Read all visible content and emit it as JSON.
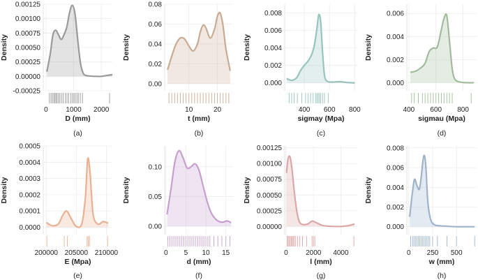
{
  "chart_data": [
    {
      "id": "a",
      "type": "area",
      "color": "#9a9a9a",
      "caption": "(a)",
      "xlabel": "D (mm)",
      "ylabel": "Density",
      "xlim": [
        -100,
        2400
      ],
      "ylim": [
        -0.00025,
        0.00125
      ],
      "xticks": [
        0,
        1000,
        2000
      ],
      "xticklabels": [
        "0",
        "1000",
        "2000"
      ],
      "yticks": [
        -0.00025,
        0,
        0.00025,
        0.0005,
        0.00075,
        0.001,
        0.00125
      ],
      "yticklabels": [
        "-0.00025",
        "0.00000",
        "0.00025",
        "0.00050",
        "0.00075",
        "0.00100",
        "0.00125"
      ],
      "x": [
        30,
        150,
        250,
        350,
        450,
        550,
        650,
        750,
        850,
        950,
        1050,
        1150,
        1250,
        1350,
        1450,
        1600,
        1800,
        2000,
        2200,
        2400
      ],
      "y": [
        8e-05,
        0.00038,
        0.00072,
        0.0008,
        0.00072,
        0.00064,
        0.00072,
        0.00085,
        0.0011,
        0.00123,
        0.00108,
        0.00062,
        0.00022,
        5e-05,
        1.5e-05,
        5e-06,
        0.0,
        0.0,
        1.5e-05,
        3e-05
      ],
      "rug": [
        120,
        180,
        230,
        280,
        320,
        360,
        400,
        450,
        500,
        560,
        620,
        700,
        760,
        820,
        900,
        960,
        1010,
        1060,
        1120,
        1170,
        1240,
        1320,
        2300
      ]
    },
    {
      "id": "b",
      "type": "area",
      "color": "#c8ab94",
      "caption": "(b)",
      "xlabel": "t (mm)",
      "ylabel": "Density",
      "xlim": [
        1.5,
        25.5
      ],
      "ylim": [
        -0.007,
        0.08
      ],
      "xticks": [
        10,
        20
      ],
      "xticklabels": [
        "10",
        "20"
      ],
      "yticks": [
        0,
        0.02,
        0.04,
        0.06,
        0.08
      ],
      "yticklabels": [
        "0.00",
        "0.02",
        "0.04",
        "0.06",
        "0.08"
      ],
      "x": [
        2.5,
        4,
        5.5,
        7,
        8.5,
        10,
        11.5,
        13,
        14,
        15,
        16,
        17.5,
        19,
        20,
        21,
        22,
        23,
        24.5
      ],
      "y": [
        0.014,
        0.028,
        0.04,
        0.046,
        0.045,
        0.038,
        0.033,
        0.04,
        0.052,
        0.059,
        0.056,
        0.046,
        0.055,
        0.068,
        0.071,
        0.058,
        0.035,
        0.013
      ],
      "rug": [
        3,
        4,
        5,
        6,
        7,
        8,
        9,
        10,
        11,
        12,
        13,
        14,
        15,
        16,
        17,
        18,
        19,
        20,
        21,
        22,
        23,
        24
      ]
    },
    {
      "id": "c",
      "type": "area",
      "color": "#98c4bc",
      "caption": "(c)",
      "xlabel": "sigmay (Mpa)",
      "ylabel": "Density",
      "xlim": [
        245,
        820
      ],
      "ylim": [
        -0.0009,
        0.009
      ],
      "xticks": [
        400,
        600,
        800
      ],
      "xticklabels": [
        "400",
        "600",
        "800"
      ],
      "yticks": [
        0,
        0.002,
        0.004,
        0.006,
        0.008
      ],
      "yticklabels": [
        "0.000",
        "0.002",
        "0.004",
        "0.006",
        "0.008"
      ],
      "x": [
        260,
        300,
        340,
        370,
        400,
        430,
        460,
        480,
        500,
        515,
        530,
        545,
        560,
        580,
        620,
        680,
        740,
        800
      ],
      "y": [
        0.0005,
        0.0003,
        0.0006,
        0.0014,
        0.002,
        0.0025,
        0.0033,
        0.0043,
        0.0062,
        0.0078,
        0.007,
        0.0035,
        0.0009,
        0.0002,
        0.0001,
        0.00015,
        5e-05,
        0.0
      ],
      "rug": [
        280,
        300,
        320,
        345,
        380,
        410,
        430,
        450,
        470,
        490,
        500,
        510,
        520,
        530,
        545,
        560,
        590
      ]
    },
    {
      "id": "d",
      "type": "area",
      "color": "#a3bb9d",
      "caption": "(d)",
      "xlabel": "sigmau (Mpa)",
      "ylabel": "Density",
      "xlim": [
        385,
        900
      ],
      "ylim": [
        -0.0007,
        0.0068
      ],
      "xticks": [
        400,
        600,
        800
      ],
      "xticklabels": [
        "400",
        "600",
        "800"
      ],
      "yticks": [
        0,
        0.002,
        0.004,
        0.006
      ],
      "yticklabels": [
        "0.000",
        "0.002",
        "0.004",
        "0.006"
      ],
      "x": [
        410,
        450,
        490,
        520,
        550,
        580,
        610,
        640,
        660,
        680,
        700,
        720,
        740,
        780,
        830,
        880
      ],
      "y": [
        0.0009,
        0.001,
        0.0013,
        0.0017,
        0.0027,
        0.003,
        0.0031,
        0.0046,
        0.0056,
        0.0058,
        0.0036,
        0.0012,
        0.0003,
        5e-05,
        0.0,
        0.0
      ],
      "rug": [
        420,
        440,
        470,
        500,
        520,
        540,
        560,
        580,
        600,
        620,
        640,
        660,
        680,
        700,
        720,
        860
      ]
    },
    {
      "id": "e",
      "type": "area",
      "color": "#e9b192",
      "caption": "(e)",
      "xlabel": "E (Mpa)",
      "ylabel": "Density",
      "xlim": [
        199500,
        211000
      ],
      "ylim": [
        -4.5e-05,
        0.0005
      ],
      "xticks": [
        200000,
        205000,
        210000
      ],
      "xticklabels": [
        "200000",
        "205000",
        "210000"
      ],
      "yticks": [
        0,
        0.0001,
        0.0002,
        0.0003,
        0.0004,
        0.0005
      ],
      "yticklabels": [
        "0.0000",
        "0.0001",
        "0.0002",
        "0.0003",
        "0.0004",
        "0.0005"
      ],
      "x": [
        200000,
        201000,
        202000,
        202700,
        203400,
        204200,
        205000,
        205900,
        206500,
        206900,
        207300,
        207800,
        208600,
        209500,
        210300
      ],
      "y": [
        3e-05,
        1e-05,
        2e-05,
        7e-05,
        0.0001,
        5e-05,
        5e-06,
        2e-05,
        0.00018,
        0.00042,
        0.00033,
        8e-05,
        2e-05,
        3.5e-05,
        2.5e-05
      ],
      "rug": [
        200100,
        203000,
        203500,
        206800,
        207000,
        207200,
        210200
      ]
    },
    {
      "id": "f",
      "type": "area",
      "color": "#c79fcd",
      "caption": "(f)",
      "xlabel": "d (mm)",
      "ylabel": "Density",
      "xlim": [
        -0.3,
        16.8
      ],
      "ylim": [
        -0.014,
        0.135
      ],
      "xticks": [
        0,
        5,
        10,
        15
      ],
      "xticklabels": [
        "0",
        "5",
        "10",
        "15"
      ],
      "yticks": [
        0,
        0.05,
        0.1
      ],
      "yticklabels": [
        "0.00",
        "0.05",
        "0.10"
      ],
      "x": [
        0.3,
        1.3,
        2.3,
        3.3,
        4.3,
        5.3,
        6.3,
        7.3,
        8.3,
        9.3,
        10.3,
        11.3,
        12.3,
        13.3,
        14.3,
        15.3,
        16.3
      ],
      "y": [
        0.02,
        0.064,
        0.11,
        0.127,
        0.115,
        0.098,
        0.1,
        0.105,
        0.094,
        0.068,
        0.042,
        0.023,
        0.013,
        0.008,
        0.007,
        0.009,
        0.006
      ],
      "rug": [
        0.5,
        1,
        1.5,
        2,
        2.5,
        3,
        3.5,
        4,
        4.5,
        5,
        5.5,
        6,
        6.5,
        7,
        7.5,
        8,
        8.5,
        9,
        9.5,
        10,
        10.5,
        11,
        12,
        13,
        14,
        15,
        16
      ]
    },
    {
      "id": "g",
      "type": "area",
      "color": "#dca7a7",
      "caption": "(g)",
      "xlabel": "l (mm)",
      "ylabel": "Density",
      "xlim": [
        -100,
        5200
      ],
      "ylim": [
        -0.00013,
        0.00128
      ],
      "xticks": [
        0,
        2000,
        4000
      ],
      "xticklabels": [
        "0",
        "2000",
        "4000"
      ],
      "yticks": [
        0,
        0.00025,
        0.0005,
        0.00075,
        0.001,
        0.00125
      ],
      "yticklabels": [
        "0.00000",
        "0.00025",
        "0.00050",
        "0.00075",
        "0.00100",
        "0.00125"
      ],
      "x": [
        30,
        150,
        300,
        450,
        600,
        800,
        1000,
        1300,
        1600,
        1900,
        2200,
        2600,
        3000,
        3500,
        4000,
        4500,
        5000
      ],
      "y": [
        0.00085,
        0.00108,
        0.0011,
        0.00088,
        0.00055,
        0.00022,
        6e-05,
        3e-05,
        4e-05,
        8.5e-05,
        6e-05,
        2e-05,
        5e-06,
        0.0,
        0.0,
        1e-05,
        4e-05
      ],
      "rug": [
        80,
        150,
        220,
        300,
        380,
        450,
        520,
        600,
        700,
        850,
        1000,
        1200,
        1500,
        1900,
        2000,
        2100,
        4950
      ]
    },
    {
      "id": "h",
      "type": "area",
      "color": "#9fb4cb",
      "caption": "(h)",
      "xlabel": "w (mm)",
      "ylabel": "Density",
      "xlim": [
        -20,
        710
      ],
      "ylim": [
        -0.0008,
        0.0082
      ],
      "xticks": [
        0,
        250,
        500
      ],
      "xticklabels": [
        "0",
        "250",
        "500"
      ],
      "yticks": [
        0,
        0.002,
        0.004,
        0.006,
        0.008
      ],
      "yticklabels": [
        "0.000",
        "0.002",
        "0.004",
        "0.006",
        "0.008"
      ],
      "x": [
        10,
        35,
        60,
        85,
        110,
        130,
        150,
        165,
        180,
        200,
        230,
        270,
        320,
        400,
        500,
        600,
        690
      ],
      "y": [
        0.001,
        0.0032,
        0.0048,
        0.0042,
        0.0038,
        0.005,
        0.0068,
        0.0072,
        0.006,
        0.0025,
        0.0007,
        0.0002,
        0.0001,
        5e-05,
        0.0,
        0.0,
        0.0
      ],
      "rug": [
        20,
        40,
        55,
        70,
        85,
        100,
        115,
        130,
        145,
        160,
        175,
        190,
        205,
        220,
        250,
        300,
        400,
        500,
        690
      ]
    }
  ]
}
